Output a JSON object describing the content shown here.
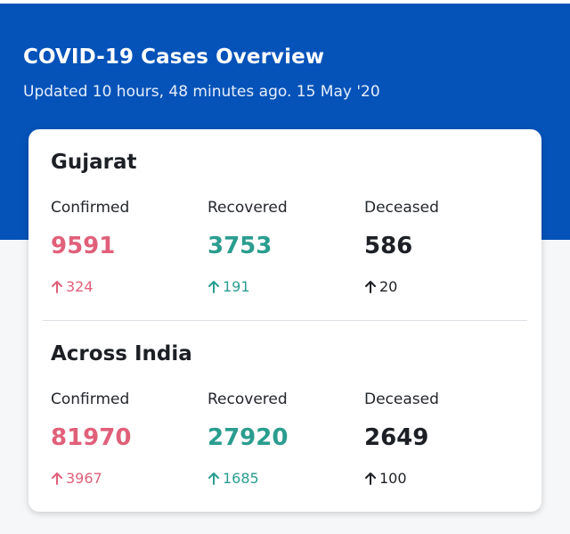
{
  "header": {
    "title": "COVID-19 Cases Overview",
    "subtitle": "Updated 10 hours, 48 minutes ago. 15 May '20"
  },
  "state": {
    "name": "Gujarat",
    "confirmed": {
      "label": "Confirmed",
      "value": "9591",
      "delta": "324"
    },
    "recovered": {
      "label": "Recovered",
      "value": "3753",
      "delta": "191"
    },
    "deceased": {
      "label": "Deceased",
      "value": "586",
      "delta": "20"
    }
  },
  "country": {
    "name": "Across India",
    "confirmed": {
      "label": "Confirmed",
      "value": "81970",
      "delta": "3967"
    },
    "recovered": {
      "label": "Recovered",
      "value": "27920",
      "delta": "1685"
    },
    "deceased": {
      "label": "Deceased",
      "value": "2649",
      "delta": "100"
    }
  },
  "colors": {
    "header_bg": "#0553b9",
    "confirmed": "#e0607a",
    "recovered": "#2a9d8f",
    "deceased": "#1c1f24"
  },
  "icons": {
    "delta": "arrow-up-icon"
  }
}
